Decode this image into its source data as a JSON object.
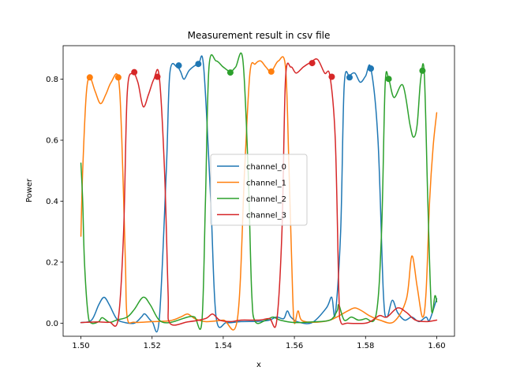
{
  "chart_data": {
    "type": "line",
    "title": "Measurement result in csv file",
    "xlabel": "x",
    "ylabel": "Power",
    "xlim": [
      1.495,
      1.605
    ],
    "ylim": [
      -0.043,
      0.91
    ],
    "x_ticks": [
      1.5,
      1.52,
      1.54,
      1.56,
      1.58,
      1.6
    ],
    "x_tick_labels": [
      "1.50",
      "1.52",
      "1.54",
      "1.56",
      "1.58",
      "1.60"
    ],
    "y_ticks": [
      0.0,
      0.2,
      0.4,
      0.6,
      0.8
    ],
    "y_tick_labels": [
      "0.0",
      "0.2",
      "0.4",
      "0.6",
      "0.8"
    ],
    "legend_position": "center",
    "grid": false,
    "series": [
      {
        "name": "channel_0",
        "color": "#1f77b4",
        "points": [
          [
            1.5,
            0.002
          ],
          [
            1.503,
            0.01
          ],
          [
            1.505,
            0.06
          ],
          [
            1.5065,
            0.085
          ],
          [
            1.508,
            0.06
          ],
          [
            1.51,
            0.015
          ],
          [
            1.512,
            0.003
          ],
          [
            1.515,
            0.0
          ],
          [
            1.517,
            0.02
          ],
          [
            1.518,
            0.03
          ],
          [
            1.52,
            0.005
          ],
          [
            1.522,
            0.01
          ],
          [
            1.524,
            0.5
          ],
          [
            1.525,
            0.82
          ],
          [
            1.527,
            0.84
          ],
          [
            1.528,
            0.825
          ],
          [
            1.529,
            0.8
          ],
          [
            1.5305,
            0.83
          ],
          [
            1.533,
            0.85
          ],
          [
            1.5345,
            0.84
          ],
          [
            1.5365,
            0.4
          ],
          [
            1.538,
            0.02
          ],
          [
            1.541,
            0.002
          ],
          [
            1.545,
            0.005
          ],
          [
            1.55,
            0.006
          ],
          [
            1.553,
            0.01
          ],
          [
            1.555,
            0.02
          ],
          [
            1.557,
            0.015
          ],
          [
            1.558,
            0.04
          ],
          [
            1.559,
            0.02
          ],
          [
            1.561,
            0.004
          ],
          [
            1.565,
            0.002
          ],
          [
            1.569,
            0.05
          ],
          [
            1.5705,
            0.085
          ],
          [
            1.5715,
            0.03
          ],
          [
            1.573,
            0.3
          ],
          [
            1.574,
            0.78
          ],
          [
            1.5755,
            0.81
          ],
          [
            1.577,
            0.82
          ],
          [
            1.5785,
            0.79
          ],
          [
            1.58,
            0.81
          ],
          [
            1.5815,
            0.835
          ],
          [
            1.5835,
            0.6
          ],
          [
            1.585,
            0.1
          ],
          [
            1.586,
            0.02
          ],
          [
            1.5875,
            0.075
          ],
          [
            1.589,
            0.035
          ],
          [
            1.591,
            0.01
          ],
          [
            1.593,
            0.02
          ],
          [
            1.595,
            0.005
          ],
          [
            1.597,
            0.02
          ],
          [
            1.598,
            0.01
          ],
          [
            1.6,
            0.08
          ]
        ],
        "markers": [
          [
            1.5275,
            0.845
          ],
          [
            1.533,
            0.85
          ],
          [
            1.5755,
            0.806
          ],
          [
            1.5815,
            0.835
          ]
        ]
      },
      {
        "name": "channel_1",
        "color": "#ff7f0e",
        "points": [
          [
            1.5,
            0.285
          ],
          [
            1.5005,
            0.5
          ],
          [
            1.5015,
            0.75
          ],
          [
            1.5025,
            0.805
          ],
          [
            1.504,
            0.76
          ],
          [
            1.5055,
            0.72
          ],
          [
            1.507,
            0.75
          ],
          [
            1.5085,
            0.79
          ],
          [
            1.5105,
            0.805
          ],
          [
            1.5115,
            0.6
          ],
          [
            1.5125,
            0.2
          ],
          [
            1.513,
            0.02
          ],
          [
            1.515,
            0.003
          ],
          [
            1.52,
            0.005
          ],
          [
            1.525,
            0.008
          ],
          [
            1.528,
            0.02
          ],
          [
            1.53,
            0.03
          ],
          [
            1.532,
            0.015
          ],
          [
            1.535,
            0.005
          ],
          [
            1.54,
            0.01
          ],
          [
            1.544,
            0.015
          ],
          [
            1.546,
            0.5
          ],
          [
            1.5475,
            0.82
          ],
          [
            1.549,
            0.85
          ],
          [
            1.5505,
            0.86
          ],
          [
            1.552,
            0.84
          ],
          [
            1.5535,
            0.825
          ],
          [
            1.5555,
            0.86
          ],
          [
            1.5575,
            0.84
          ],
          [
            1.5585,
            0.5
          ],
          [
            1.5595,
            0.1
          ],
          [
            1.56,
            0.0
          ],
          [
            1.561,
            0.04
          ],
          [
            1.562,
            0.01
          ],
          [
            1.565,
            0.003
          ],
          [
            1.57,
            0.01
          ],
          [
            1.575,
            0.04
          ],
          [
            1.577,
            0.05
          ],
          [
            1.579,
            0.04
          ],
          [
            1.581,
            0.025
          ],
          [
            1.584,
            0.01
          ],
          [
            1.588,
            0.005
          ],
          [
            1.5915,
            0.08
          ],
          [
            1.593,
            0.22
          ],
          [
            1.5945,
            0.12
          ],
          [
            1.596,
            0.02
          ],
          [
            1.597,
            0.1
          ],
          [
            1.598,
            0.4
          ],
          [
            1.599,
            0.58
          ],
          [
            1.6,
            0.69
          ]
        ],
        "markers": [
          [
            1.5025,
            0.806
          ],
          [
            1.5105,
            0.806
          ],
          [
            1.5535,
            0.825
          ]
        ]
      },
      {
        "name": "channel_2",
        "color": "#2ca02c",
        "points": [
          [
            1.5,
            0.525
          ],
          [
            1.5005,
            0.4
          ],
          [
            1.501,
            0.2
          ],
          [
            1.502,
            0.03
          ],
          [
            1.503,
            0.0
          ],
          [
            1.505,
            0.005
          ],
          [
            1.506,
            0.018
          ],
          [
            1.508,
            0.003
          ],
          [
            1.51,
            0.01
          ],
          [
            1.513,
            0.02
          ],
          [
            1.515,
            0.045
          ],
          [
            1.5175,
            0.085
          ],
          [
            1.5195,
            0.06
          ],
          [
            1.522,
            0.01
          ],
          [
            1.525,
            0.002
          ],
          [
            1.53,
            0.02
          ],
          [
            1.532,
            0.02
          ],
          [
            1.534,
            0.005
          ],
          [
            1.535,
            0.4
          ],
          [
            1.536,
            0.84
          ],
          [
            1.538,
            0.86
          ],
          [
            1.54,
            0.84
          ],
          [
            1.542,
            0.825
          ],
          [
            1.5435,
            0.84
          ],
          [
            1.5455,
            0.865
          ],
          [
            1.547,
            0.5
          ],
          [
            1.548,
            0.1
          ],
          [
            1.549,
            0.005
          ],
          [
            1.552,
            0.01
          ],
          [
            1.554,
            0.02
          ],
          [
            1.556,
            0.01
          ],
          [
            1.56,
            0.002
          ],
          [
            1.565,
            0.004
          ],
          [
            1.57,
            0.01
          ],
          [
            1.572,
            0.04
          ],
          [
            1.5725,
            0.06
          ],
          [
            1.574,
            0.01
          ],
          [
            1.576,
            0.02
          ],
          [
            1.578,
            0.01
          ],
          [
            1.58,
            0.015
          ],
          [
            1.583,
            0.03
          ],
          [
            1.5845,
            0.3
          ],
          [
            1.5855,
            0.78
          ],
          [
            1.5865,
            0.8
          ],
          [
            1.588,
            0.74
          ],
          [
            1.5905,
            0.78
          ],
          [
            1.5925,
            0.65
          ],
          [
            1.5935,
            0.61
          ],
          [
            1.5945,
            0.65
          ],
          [
            1.5955,
            0.8
          ],
          [
            1.5965,
            0.82
          ],
          [
            1.5975,
            0.4
          ],
          [
            1.5985,
            0.05
          ],
          [
            1.5995,
            0.09
          ],
          [
            1.6,
            0.07
          ]
        ],
        "markers": [
          [
            1.542,
            0.822
          ],
          [
            1.5865,
            0.801
          ],
          [
            1.596,
            0.828
          ]
        ]
      },
      {
        "name": "channel_3",
        "color": "#d62728",
        "points": [
          [
            1.5,
            0.002
          ],
          [
            1.505,
            0.004
          ],
          [
            1.508,
            0.003
          ],
          [
            1.5105,
            0.015
          ],
          [
            1.512,
            0.3
          ],
          [
            1.513,
            0.75
          ],
          [
            1.5145,
            0.82
          ],
          [
            1.516,
            0.79
          ],
          [
            1.5175,
            0.71
          ],
          [
            1.519,
            0.75
          ],
          [
            1.5205,
            0.8
          ],
          [
            1.522,
            0.81
          ],
          [
            1.5235,
            0.5
          ],
          [
            1.5245,
            0.1
          ],
          [
            1.525,
            0.0
          ],
          [
            1.53,
            0.004
          ],
          [
            1.535,
            0.015
          ],
          [
            1.537,
            0.03
          ],
          [
            1.539,
            0.01
          ],
          [
            1.542,
            0.005
          ],
          [
            1.545,
            0.01
          ],
          [
            1.55,
            0.01
          ],
          [
            1.553,
            0.015
          ],
          [
            1.555,
            0.005
          ],
          [
            1.5565,
            0.3
          ],
          [
            1.5575,
            0.8
          ],
          [
            1.559,
            0.84
          ],
          [
            1.5605,
            0.82
          ],
          [
            1.5625,
            0.84
          ],
          [
            1.5645,
            0.855
          ],
          [
            1.5665,
            0.865
          ],
          [
            1.5685,
            0.82
          ],
          [
            1.57,
            0.81
          ],
          [
            1.5715,
            0.6
          ],
          [
            1.5725,
            0.1
          ],
          [
            1.573,
            0.005
          ],
          [
            1.575,
            0.0
          ],
          [
            1.58,
            0.0
          ],
          [
            1.582,
            0.01
          ],
          [
            1.584,
            0.025
          ],
          [
            1.586,
            0.02
          ],
          [
            1.589,
            0.05
          ],
          [
            1.5915,
            0.035
          ],
          [
            1.594,
            0.01
          ],
          [
            1.597,
            0.005
          ],
          [
            1.6,
            0.01
          ]
        ],
        "markers": [
          [
            1.515,
            0.823
          ],
          [
            1.5215,
            0.808
          ],
          [
            1.565,
            0.853
          ],
          [
            1.5705,
            0.808
          ]
        ]
      }
    ]
  }
}
